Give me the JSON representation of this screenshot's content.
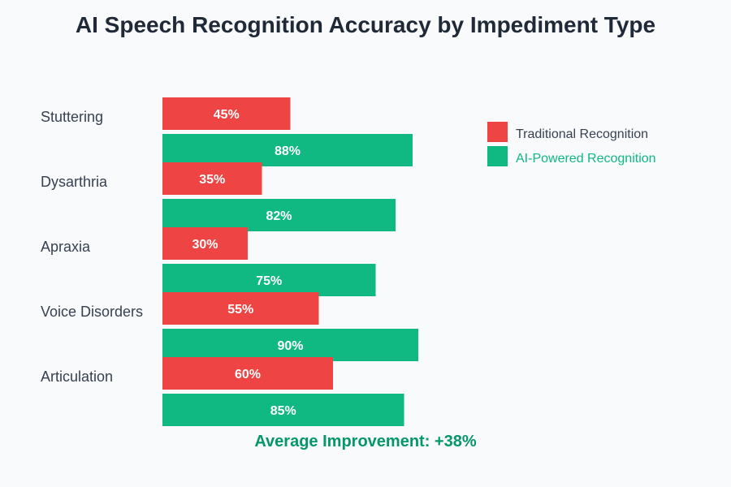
{
  "chart_data": {
    "type": "bar",
    "orientation": "horizontal",
    "title": "AI Speech Recognition Accuracy by Impediment Type",
    "categories": [
      "Stuttering",
      "Dysarthria",
      "Apraxia",
      "Voice Disorders",
      "Articulation"
    ],
    "series": [
      {
        "name": "Traditional Recognition",
        "color": "#ef4444",
        "values": [
          45,
          35,
          30,
          55,
          60
        ]
      },
      {
        "name": "AI-Powered Recognition",
        "color": "#10b981",
        "values": [
          88,
          82,
          75,
          90,
          85
        ]
      }
    ],
    "value_suffix": "%",
    "xlim": [
      0,
      100
    ],
    "legend_position": "right",
    "annotation": "Average Improvement: +38%"
  }
}
